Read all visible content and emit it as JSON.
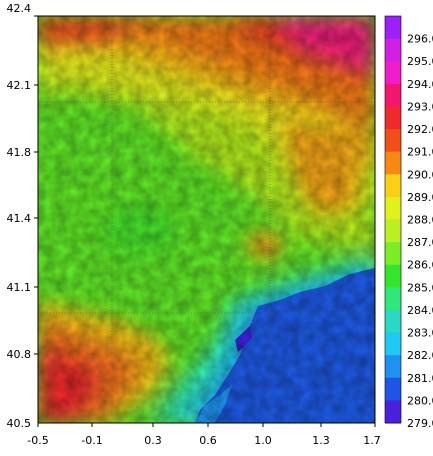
{
  "map": {
    "x_ticks": [
      "-0.5",
      "-0.1",
      "0.3",
      "0.6",
      "1.0",
      "1.3",
      "1.7"
    ],
    "y_ticks": [
      "42.4",
      "42.1",
      "41.8",
      "41.4",
      "41.1",
      "40.8",
      "40.5"
    ],
    "x_range": [
      -0.5,
      1.7
    ],
    "y_range": [
      40.5,
      42.4
    ],
    "gridlines": "dotted"
  },
  "colorbar": {
    "labels": [
      "296.0",
      "295.0",
      "294.0",
      "293.0",
      "292.0",
      "291.0",
      "290.0",
      "289.0",
      "288.0",
      "287.0",
      "286.0",
      "285.0",
      "284.0",
      "283.0",
      "282.0",
      "281.0",
      "280.0",
      "279.0"
    ],
    "colors": [
      "#9f1ffb",
      "#d21fe6",
      "#f21ccf",
      "#f5156e",
      "#f02a2a",
      "#f24f18",
      "#f78912",
      "#fbcf12",
      "#e3f11a",
      "#b9f01f",
      "#79ee23",
      "#32e62a",
      "#2ee87a",
      "#2ad9c4",
      "#1ec9f5",
      "#1e92f2",
      "#1f56e8",
      "#4a1fe0"
    ]
  }
}
